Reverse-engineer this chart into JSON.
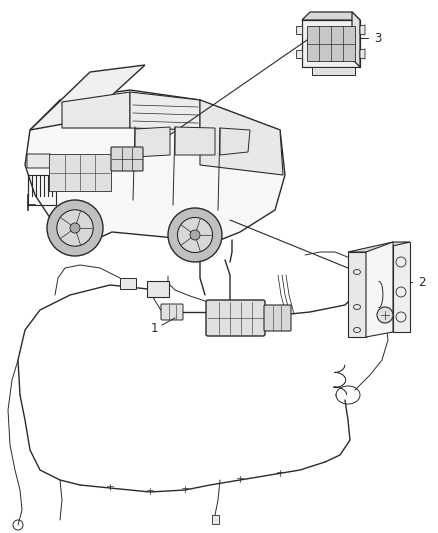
{
  "bg_color": "#ffffff",
  "line_color": "#2a2a2a",
  "fig_width": 4.38,
  "fig_height": 5.33,
  "dpi": 100,
  "label_fontsize": 8.5,
  "label_color": "#222222"
}
